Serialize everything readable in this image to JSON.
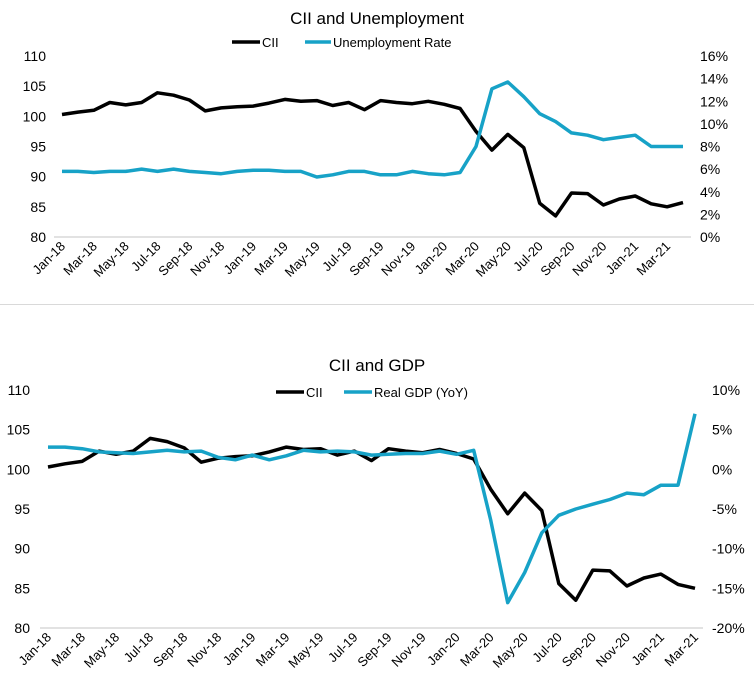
{
  "colors": {
    "cii": "#000000",
    "secondary": "#17a2c7",
    "axis": "#d9d9d9"
  },
  "chart_data": [
    {
      "type": "line",
      "title": "CII and Unemployment",
      "x": [
        "Jan-18",
        "Feb-18",
        "Mar-18",
        "Apr-18",
        "May-18",
        "Jun-18",
        "Jul-18",
        "Aug-18",
        "Sep-18",
        "Oct-18",
        "Nov-18",
        "Dec-18",
        "Jan-19",
        "Feb-19",
        "Mar-19",
        "Apr-19",
        "May-19",
        "Jun-19",
        "Jul-19",
        "Aug-19",
        "Sep-19",
        "Oct-19",
        "Nov-19",
        "Dec-19",
        "Jan-20",
        "Feb-20",
        "Mar-20",
        "Apr-20",
        "May-20",
        "Jun-20",
        "Jul-20",
        "Aug-20",
        "Sep-20",
        "Oct-20",
        "Nov-20",
        "Dec-20",
        "Jan-21",
        "Feb-21",
        "Mar-21",
        "Apr-21"
      ],
      "xtick_labels": [
        "Jan-18",
        "Mar-18",
        "May-18",
        "Jul-18",
        "Sep-18",
        "Nov-18",
        "Jan-19",
        "Mar-19",
        "May-19",
        "Jul-19",
        "Sep-19",
        "Nov-19",
        "Jan-20",
        "Mar-20",
        "May-20",
        "Jul-20",
        "Sep-20",
        "Nov-20",
        "Jan-21",
        "Mar-21"
      ],
      "y_left": {
        "lim": [
          80,
          110
        ],
        "ticks": [
          "80",
          "85",
          "90",
          "95",
          "100",
          "105",
          "110"
        ]
      },
      "y_right": {
        "lim": [
          0,
          16
        ],
        "ticks": [
          "0%",
          "2%",
          "4%",
          "6%",
          "8%",
          "10%",
          "12%",
          "14%",
          "16%"
        ]
      },
      "legend": "top-center",
      "grid": false,
      "series": [
        {
          "name": "CII",
          "axis": "left",
          "color": "#000000",
          "values": [
            100.3,
            100.7,
            101.0,
            102.3,
            101.9,
            102.3,
            103.9,
            103.5,
            102.7,
            100.9,
            101.4,
            101.6,
            101.7,
            102.2,
            102.8,
            102.5,
            102.6,
            101.8,
            102.3,
            101.1,
            102.6,
            102.3,
            102.1,
            102.5,
            102.0,
            101.3,
            97.5,
            94.4,
            97.0,
            94.8,
            85.6,
            83.5,
            87.3,
            87.2,
            85.3,
            86.3,
            86.8,
            85.5,
            85.0,
            85.7
          ]
        },
        {
          "name": "Unemployment Rate",
          "axis": "right",
          "color": "#17a2c7",
          "values": [
            5.8,
            5.8,
            5.7,
            5.8,
            5.8,
            6.0,
            5.8,
            6.0,
            5.8,
            5.7,
            5.6,
            5.8,
            5.9,
            5.9,
            5.8,
            5.8,
            5.3,
            5.5,
            5.8,
            5.8,
            5.5,
            5.5,
            5.8,
            5.6,
            5.5,
            5.7,
            8.0,
            13.1,
            13.7,
            12.4,
            10.9,
            10.2,
            9.2,
            9.0,
            8.6,
            8.8,
            9.0,
            8.0,
            8.0,
            8.0
          ]
        }
      ]
    },
    {
      "type": "line",
      "title": "CII and GDP",
      "x": [
        "Jan-18",
        "Feb-18",
        "Mar-18",
        "Apr-18",
        "May-18",
        "Jun-18",
        "Jul-18",
        "Aug-18",
        "Sep-18",
        "Oct-18",
        "Nov-18",
        "Dec-18",
        "Jan-19",
        "Feb-19",
        "Mar-19",
        "Apr-19",
        "May-19",
        "Jun-19",
        "Jul-19",
        "Aug-19",
        "Sep-19",
        "Oct-19",
        "Nov-19",
        "Dec-19",
        "Jan-20",
        "Feb-20",
        "Mar-20",
        "Apr-20",
        "May-20",
        "Jun-20",
        "Jul-20",
        "Aug-20",
        "Sep-20",
        "Oct-20",
        "Nov-20",
        "Dec-20",
        "Jan-21",
        "Feb-21",
        "Mar-21"
      ],
      "xtick_labels": [
        "Jan-18",
        "Mar-18",
        "May-18",
        "Jul-18",
        "Sep-18",
        "Nov-18",
        "Jan-19",
        "Mar-19",
        "May-19",
        "Jul-19",
        "Sep-19",
        "Nov-19",
        "Jan-20",
        "Mar-20",
        "May-20",
        "Jul-20",
        "Sep-20",
        "Nov-20",
        "Jan-21",
        "Mar-21"
      ],
      "y_left": {
        "lim": [
          80,
          110
        ],
        "ticks": [
          "80",
          "85",
          "90",
          "95",
          "100",
          "105",
          "110"
        ]
      },
      "y_right": {
        "lim": [
          -20,
          10
        ],
        "ticks": [
          "-20%",
          "-15%",
          "-10%",
          "-5%",
          "0%",
          "5%",
          "10%"
        ]
      },
      "legend": "top-center",
      "grid": false,
      "series": [
        {
          "name": "CII",
          "axis": "left",
          "color": "#000000",
          "values": [
            100.3,
            100.7,
            101.0,
            102.3,
            101.9,
            102.3,
            103.9,
            103.5,
            102.7,
            100.9,
            101.4,
            101.6,
            101.7,
            102.2,
            102.8,
            102.5,
            102.6,
            101.8,
            102.3,
            101.1,
            102.6,
            102.3,
            102.1,
            102.5,
            102.0,
            101.3,
            97.5,
            94.4,
            97.0,
            94.8,
            85.6,
            83.5,
            87.3,
            87.2,
            85.3,
            86.3,
            86.8,
            85.5,
            85.0
          ]
        },
        {
          "name": "Real GDP (YoY)",
          "axis": "right",
          "color": "#17a2c7",
          "values": [
            2.8,
            2.8,
            2.6,
            2.2,
            2.1,
            2.0,
            2.2,
            2.4,
            2.2,
            2.3,
            1.5,
            1.2,
            1.8,
            1.2,
            1.7,
            2.4,
            2.2,
            2.3,
            2.2,
            1.8,
            1.9,
            2.0,
            2.0,
            2.3,
            1.9,
            2.4,
            -6.4,
            -16.8,
            -13.0,
            -8.0,
            -5.8,
            -5.0,
            -4.4,
            -3.8,
            -3.0,
            -3.2,
            -2.0,
            -2.0,
            7.0
          ]
        }
      ]
    }
  ]
}
